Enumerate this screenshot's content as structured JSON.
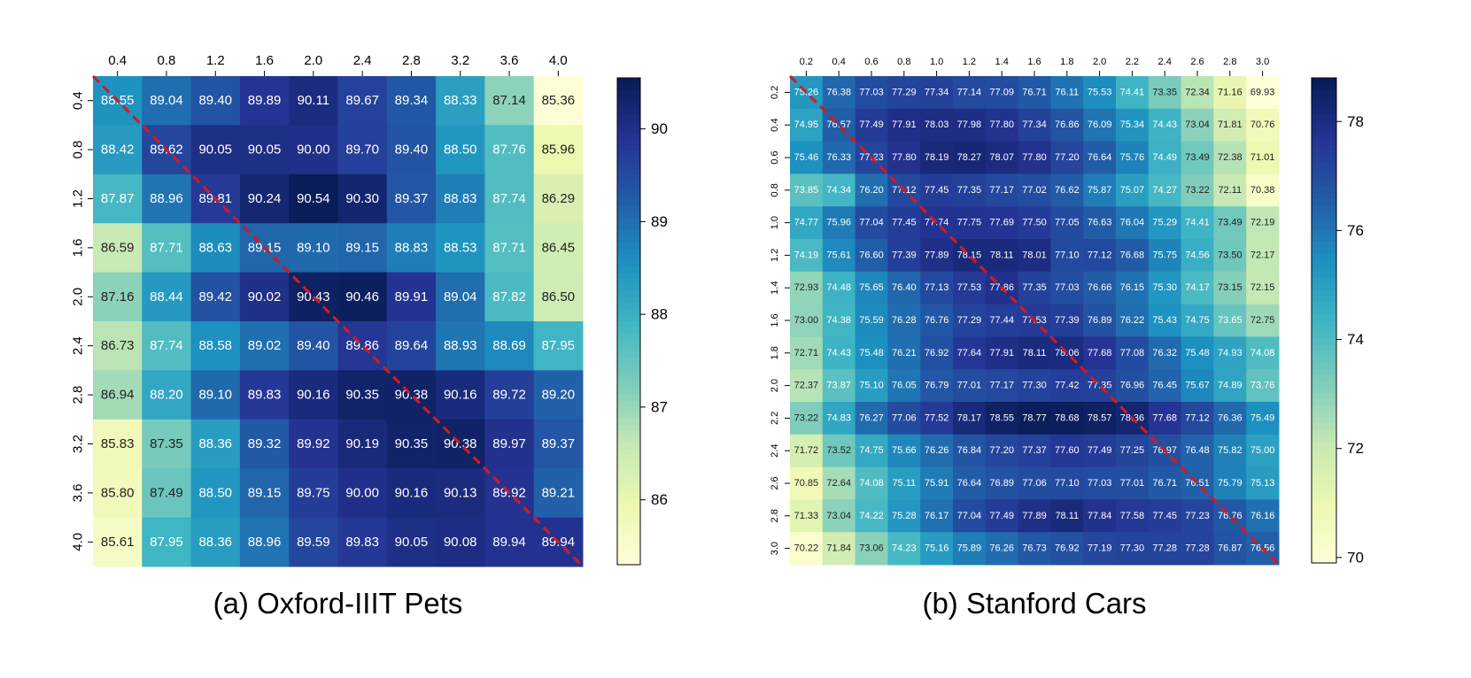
{
  "colors": {
    "colormap": [
      "#ffffd9",
      "#edf8b1",
      "#c7e9b4",
      "#7fcdbb",
      "#41b6c4",
      "#1d91c0",
      "#225ea8",
      "#253494",
      "#081d58"
    ],
    "diagonal": "#d7191c",
    "text_light": "#ffffff",
    "text_dark": "#222222"
  },
  "chart_data": [
    {
      "type": "heatmap",
      "caption": "(a) Oxford-IIIT Pets",
      "x_categories": [
        "0.4",
        "0.8",
        "1.2",
        "1.6",
        "2.0",
        "2.4",
        "2.8",
        "3.2",
        "3.6",
        "4.0"
      ],
      "y_categories": [
        "0.4",
        "0.8",
        "1.2",
        "1.6",
        "2.0",
        "2.4",
        "2.8",
        "3.2",
        "3.6",
        "4.0"
      ],
      "values": [
        [
          88.55,
          89.04,
          89.4,
          89.89,
          90.11,
          89.67,
          89.34,
          88.33,
          87.14,
          85.36
        ],
        [
          88.42,
          89.62,
          90.05,
          90.05,
          90.0,
          89.7,
          89.4,
          88.5,
          87.76,
          85.96
        ],
        [
          87.87,
          88.96,
          89.81,
          90.24,
          90.54,
          90.3,
          89.37,
          88.83,
          87.74,
          86.29
        ],
        [
          86.59,
          87.71,
          88.63,
          89.15,
          89.1,
          89.15,
          88.83,
          88.53,
          87.71,
          86.45
        ],
        [
          87.16,
          88.44,
          89.42,
          90.02,
          90.43,
          90.46,
          89.91,
          89.04,
          87.82,
          86.5
        ],
        [
          86.73,
          87.74,
          88.58,
          89.02,
          89.4,
          89.86,
          89.64,
          88.93,
          88.69,
          87.95
        ],
        [
          86.94,
          88.2,
          89.1,
          89.83,
          90.16,
          90.35,
          90.38,
          90.16,
          89.72,
          89.2
        ],
        [
          85.83,
          87.35,
          88.36,
          89.32,
          89.92,
          90.19,
          90.35,
          90.38,
          89.97,
          89.37
        ],
        [
          85.8,
          87.49,
          88.5,
          89.15,
          89.75,
          90.0,
          90.16,
          90.13,
          89.92,
          89.21
        ],
        [
          85.61,
          87.95,
          88.36,
          88.96,
          89.59,
          89.83,
          90.05,
          90.08,
          89.94,
          89.94
        ]
      ],
      "colorbar": {
        "vmin": 85.3,
        "vmax": 90.55,
        "ticks": [
          86,
          87,
          88,
          89,
          90
        ],
        "tick_labels": [
          "86",
          "87",
          "88",
          "89",
          "90"
        ]
      },
      "diagonal": true
    },
    {
      "type": "heatmap",
      "caption": "(b) Stanford Cars",
      "x_categories": [
        "0.2",
        "0.4",
        "0.6",
        "0.8",
        "1.0",
        "1.2",
        "1.4",
        "1.6",
        "1.8",
        "2.0",
        "2.2",
        "2.4",
        "2.6",
        "2.8",
        "3.0"
      ],
      "y_categories": [
        "0.2",
        "0.4",
        "0.6",
        "0.8",
        "1.0",
        "1.2",
        "1.4",
        "1.6",
        "1.8",
        "2.0",
        "2.2",
        "2.4",
        "2.6",
        "2.8",
        "3.0"
      ],
      "values": [
        [
          75.26,
          76.38,
          77.03,
          77.29,
          77.34,
          77.14,
          77.09,
          76.71,
          76.11,
          75.53,
          74.41,
          73.35,
          72.34,
          71.16,
          69.93
        ],
        [
          74.95,
          76.57,
          77.49,
          77.91,
          78.03,
          77.98,
          77.8,
          77.34,
          76.86,
          76.09,
          75.34,
          74.43,
          73.04,
          71.81,
          70.76
        ],
        [
          75.46,
          76.33,
          77.23,
          77.8,
          78.19,
          78.27,
          78.07,
          77.8,
          77.2,
          76.64,
          75.76,
          74.49,
          73.49,
          72.38,
          71.01
        ],
        [
          73.85,
          74.34,
          76.2,
          77.12,
          77.45,
          77.35,
          77.17,
          77.02,
          76.62,
          75.87,
          75.07,
          74.27,
          73.22,
          72.11,
          70.38
        ],
        [
          74.77,
          75.96,
          77.04,
          77.45,
          77.74,
          77.75,
          77.69,
          77.5,
          77.05,
          76.63,
          76.04,
          75.29,
          74.41,
          73.49,
          72.19
        ],
        [
          74.19,
          75.61,
          76.6,
          77.39,
          77.89,
          78.15,
          78.11,
          78.01,
          77.1,
          77.12,
          76.68,
          75.75,
          74.56,
          73.5,
          72.17
        ],
        [
          72.93,
          74.48,
          75.65,
          76.4,
          77.13,
          77.53,
          77.86,
          77.35,
          77.03,
          76.66,
          76.15,
          75.3,
          74.17,
          73.15,
          72.15
        ],
        [
          73.0,
          74.38,
          75.59,
          76.28,
          76.76,
          77.29,
          77.44,
          77.53,
          77.39,
          76.89,
          76.22,
          75.43,
          74.75,
          73.65,
          72.75
        ],
        [
          72.71,
          74.43,
          75.48,
          76.21,
          76.92,
          77.64,
          77.91,
          78.11,
          78.06,
          77.68,
          77.08,
          76.32,
          75.48,
          74.93,
          74.08
        ],
        [
          72.37,
          73.87,
          75.1,
          76.05,
          76.79,
          77.01,
          77.17,
          77.3,
          77.42,
          77.35,
          76.96,
          76.45,
          75.67,
          74.89,
          73.76
        ],
        [
          73.22,
          74.83,
          76.27,
          77.06,
          77.52,
          78.17,
          78.55,
          78.77,
          78.68,
          78.57,
          78.36,
          77.68,
          77.12,
          76.36,
          75.49
        ],
        [
          71.72,
          73.52,
          74.75,
          75.66,
          76.26,
          76.84,
          77.2,
          77.37,
          77.6,
          77.49,
          77.25,
          76.97,
          76.48,
          75.82,
          75.0
        ],
        [
          70.85,
          72.64,
          74.08,
          75.11,
          75.91,
          76.64,
          76.89,
          77.06,
          77.1,
          77.03,
          77.01,
          76.71,
          76.51,
          75.79,
          75.13
        ],
        [
          71.33,
          73.04,
          74.22,
          75.28,
          76.17,
          77.04,
          77.49,
          77.89,
          78.11,
          77.84,
          77.58,
          77.45,
          77.23,
          76.76,
          76.16
        ],
        [
          70.22,
          71.84,
          73.06,
          74.23,
          75.16,
          75.89,
          76.26,
          76.73,
          76.92,
          77.19,
          77.3,
          77.28,
          77.28,
          76.87,
          76.56
        ]
      ],
      "colorbar": {
        "vmin": 69.9,
        "vmax": 78.8,
        "ticks": [
          70,
          72,
          74,
          76,
          78
        ],
        "tick_labels": [
          "70",
          "72",
          "74",
          "76",
          "78"
        ]
      },
      "diagonal": true
    }
  ]
}
